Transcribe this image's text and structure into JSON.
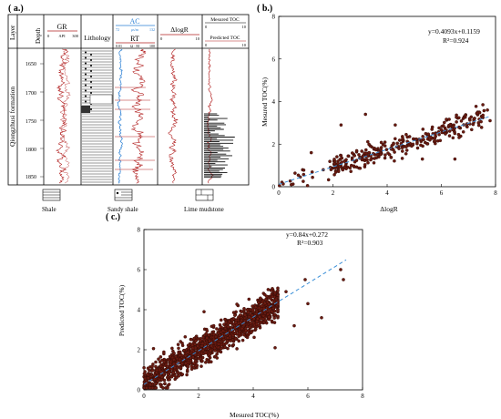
{
  "panels": {
    "a": "( a.)",
    "b": "( b.)",
    "c": "( c.)"
  },
  "log_panel": {
    "headers": {
      "layer": "Layer",
      "depth": "Depth",
      "gr": "GR",
      "gr_unit": "API",
      "gr_min": "0",
      "gr_max": "300",
      "lithology": "Lithology",
      "ac": "AC",
      "ac_unit": "μs/m",
      "ac_min": "72",
      "ac_max": "132",
      "rt": "RT",
      "rt_unit": "Ω · M",
      "rt_min": "0.01",
      "rt_max": "100",
      "dlogr": "ΔlogR",
      "dlogr_min": "0",
      "dlogr_max": "10",
      "measured_toc": "Mesured TOC",
      "measured_min": "0",
      "measured_max": "10",
      "predicted_toc": "Predicted TOC",
      "predicted_min": "0",
      "predicted_max": "10"
    },
    "formation": "Qiongzhusi formation",
    "depths": [
      "1650",
      "1700",
      "1750",
      "1800",
      "1850"
    ],
    "legend": [
      "Shale",
      "Sandy shale",
      "Lime mudstone"
    ]
  },
  "colors": {
    "gr_curve": "#b22020",
    "ac_curve": "#2a7fd4",
    "rt_curve": "#b22020",
    "dlogr_curve": "#b22020",
    "toc_bars": "#111111",
    "point_fill": "#6b1a10",
    "point_edge": "#2a0a05",
    "fit_line": "#3a8fd8",
    "ac_header": "#2a7fd4"
  },
  "chart_data": [
    {
      "id": "b",
      "type": "scatter",
      "title": "",
      "xlabel": "ΔlogR",
      "ylabel": "Mesured TOC(%)",
      "xlim": [
        0,
        8
      ],
      "ylim": [
        0,
        8
      ],
      "xticks": [
        0,
        2,
        4,
        6,
        8
      ],
      "yticks": [
        0,
        2,
        4,
        6,
        8
      ],
      "equation": "y=0.4093x+0.1159",
      "r2": "R²=0.924",
      "fit": {
        "slope": 0.4093,
        "intercept": 0.1159,
        "x_range": [
          0,
          7.8
        ]
      },
      "points_summary": {
        "count": 320,
        "x_range": [
          0.05,
          7.7
        ],
        "y_range": [
          0.05,
          3.4
        ]
      }
    },
    {
      "id": "c",
      "type": "scatter",
      "title": "",
      "xlabel": "Mesured TOC(%)",
      "ylabel": "Predicted TOC(%)",
      "xlim": [
        0,
        8
      ],
      "ylim": [
        0,
        8
      ],
      "xticks": [
        0,
        2,
        4,
        6,
        8
      ],
      "yticks": [
        0,
        2,
        4,
        6,
        8
      ],
      "equation": "y=0.84x+0.272",
      "r2": "R²=0.903",
      "fit": {
        "slope": 0.84,
        "intercept": 0.272,
        "x_range": [
          0,
          7.4
        ]
      },
      "points_summary": {
        "count": 1400,
        "x_range": [
          0.05,
          7.3
        ],
        "y_range": [
          0.1,
          6.0
        ]
      }
    }
  ]
}
